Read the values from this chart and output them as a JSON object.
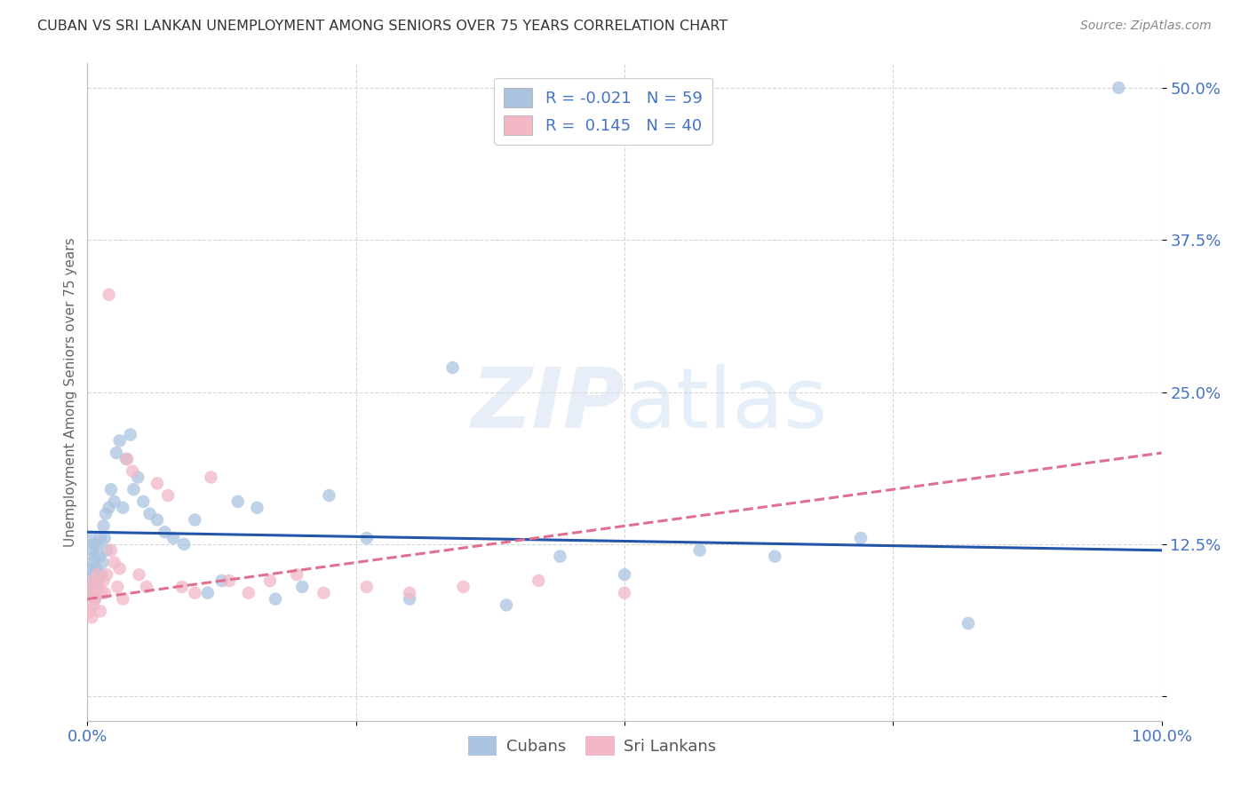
{
  "title": "CUBAN VS SRI LANKAN UNEMPLOYMENT AMONG SENIORS OVER 75 YEARS CORRELATION CHART",
  "source": "Source: ZipAtlas.com",
  "ylabel": "Unemployment Among Seniors over 75 years",
  "xlim": [
    0.0,
    1.0
  ],
  "ylim": [
    -0.02,
    0.52
  ],
  "cuban_R": "-0.021",
  "cuban_N": "59",
  "srilankan_R": "0.145",
  "srilankan_N": "40",
  "cuban_color": "#aac4e0",
  "srilankan_color": "#f2b8c6",
  "cuban_line_color": "#2255aa",
  "srilankan_line_color": "#e07090",
  "background_color": "#ffffff",
  "grid_color": "#cccccc",
  "title_color": "#333333",
  "axis_label_color": "#666666",
  "tick_label_color": "#4472c4",
  "legend_label_color": "#4472c4",
  "cuban_x": [
    0.002,
    0.003,
    0.003,
    0.004,
    0.004,
    0.005,
    0.005,
    0.006,
    0.006,
    0.007,
    0.007,
    0.008,
    0.008,
    0.009,
    0.01,
    0.01,
    0.011,
    0.012,
    0.013,
    0.014,
    0.015,
    0.016,
    0.017,
    0.018,
    0.02,
    0.022,
    0.025,
    0.027,
    0.03,
    0.033,
    0.036,
    0.04,
    0.043,
    0.047,
    0.052,
    0.058,
    0.065,
    0.072,
    0.08,
    0.09,
    0.1,
    0.112,
    0.125,
    0.14,
    0.158,
    0.175,
    0.2,
    0.225,
    0.26,
    0.3,
    0.34,
    0.39,
    0.44,
    0.5,
    0.57,
    0.64,
    0.72,
    0.82,
    0.96
  ],
  "cuban_y": [
    0.105,
    0.13,
    0.09,
    0.12,
    0.085,
    0.1,
    0.11,
    0.095,
    0.125,
    0.08,
    0.115,
    0.09,
    0.105,
    0.125,
    0.1,
    0.095,
    0.115,
    0.13,
    0.1,
    0.11,
    0.14,
    0.13,
    0.15,
    0.12,
    0.155,
    0.17,
    0.16,
    0.2,
    0.21,
    0.155,
    0.195,
    0.215,
    0.17,
    0.18,
    0.16,
    0.15,
    0.145,
    0.135,
    0.13,
    0.125,
    0.145,
    0.085,
    0.095,
    0.16,
    0.155,
    0.08,
    0.09,
    0.165,
    0.13,
    0.08,
    0.27,
    0.075,
    0.115,
    0.1,
    0.12,
    0.115,
    0.13,
    0.06,
    0.5
  ],
  "srilankan_x": [
    0.002,
    0.003,
    0.004,
    0.005,
    0.005,
    0.006,
    0.007,
    0.008,
    0.009,
    0.01,
    0.012,
    0.013,
    0.015,
    0.016,
    0.018,
    0.02,
    0.022,
    0.025,
    0.028,
    0.03,
    0.033,
    0.037,
    0.042,
    0.048,
    0.055,
    0.065,
    0.075,
    0.088,
    0.1,
    0.115,
    0.132,
    0.15,
    0.17,
    0.195,
    0.22,
    0.26,
    0.3,
    0.35,
    0.42,
    0.5
  ],
  "srilankan_y": [
    0.07,
    0.085,
    0.065,
    0.09,
    0.075,
    0.095,
    0.08,
    0.085,
    0.1,
    0.09,
    0.07,
    0.085,
    0.095,
    0.085,
    0.1,
    0.33,
    0.12,
    0.11,
    0.09,
    0.105,
    0.08,
    0.195,
    0.185,
    0.1,
    0.09,
    0.175,
    0.165,
    0.09,
    0.085,
    0.18,
    0.095,
    0.085,
    0.095,
    0.1,
    0.085,
    0.09,
    0.085,
    0.09,
    0.095,
    0.085
  ],
  "cuban_line_x0": 0.0,
  "cuban_line_x1": 1.0,
  "cuban_line_y0": 0.135,
  "cuban_line_y1": 0.12,
  "sri_line_x0": 0.0,
  "sri_line_x1": 1.0,
  "sri_line_y0": 0.08,
  "sri_line_y1": 0.2
}
